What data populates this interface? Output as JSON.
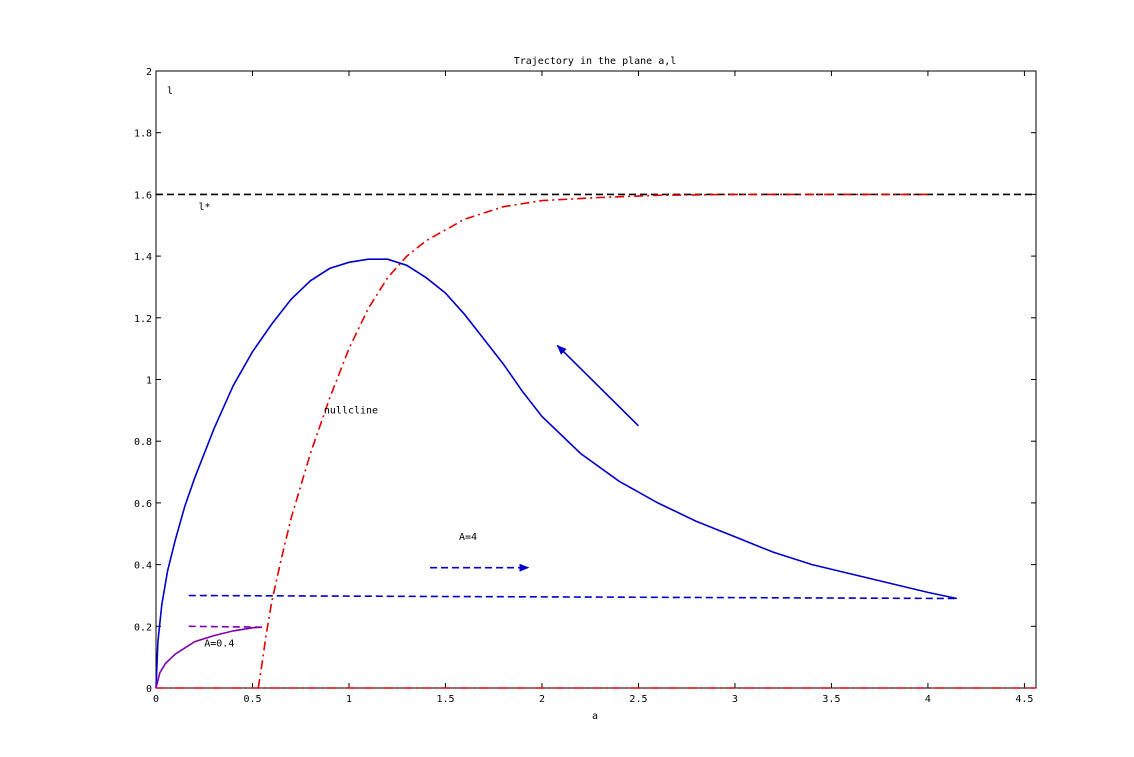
{
  "chart_data": {
    "type": "line",
    "title": "Trajectory in the plane a,l",
    "xlabel": "a",
    "ylabel": "l",
    "xlim": [
      0,
      4.56
    ],
    "ylim": [
      0,
      2
    ],
    "grid": false,
    "x_ticks": [
      "0",
      "0.5",
      "1",
      "1.5",
      "2",
      "2.5",
      "3",
      "3.5",
      "4",
      "4.5"
    ],
    "y_ticks": [
      "0",
      "0.2",
      "0.4",
      "0.6",
      "0.8",
      "1",
      "1.2",
      "1.4",
      "1.6",
      "1.8",
      "2"
    ],
    "annotations": [
      {
        "text": "l*",
        "x": 0.22,
        "y": 1.55
      },
      {
        "text": "nullcline",
        "x": 0.87,
        "y": 0.89
      },
      {
        "text": "A=4",
        "x": 1.57,
        "y": 0.48
      },
      {
        "text": "A=0.4",
        "x": 0.25,
        "y": 0.135
      }
    ],
    "series": [
      {
        "style": "dashed",
        "color": "#000000",
        "x": [
          0,
          4.56
        ],
        "y": [
          1.6,
          1.6
        ]
      },
      {
        "style": "dashdot",
        "color": "#e00000",
        "x": [
          0.53,
          0.55,
          0.57,
          0.6,
          0.65,
          0.7,
          0.8,
          0.9,
          1.0,
          1.1,
          1.2,
          1.3,
          1.4,
          1.6,
          1.8,
          2.0,
          2.3,
          2.6,
          3.0,
          3.5,
          4.0
        ],
        "y": [
          0.0,
          0.08,
          0.17,
          0.28,
          0.42,
          0.55,
          0.76,
          0.94,
          1.1,
          1.23,
          1.33,
          1.4,
          1.45,
          1.52,
          1.56,
          1.58,
          1.59,
          1.597,
          1.6,
          1.6,
          1.6
        ]
      },
      {
        "style": "dashdot",
        "color": "#e00000",
        "x": [
          0,
          4.56
        ],
        "y": [
          0,
          0
        ]
      },
      {
        "style": "solid",
        "color": "#0000cc",
        "x": [
          0,
          0.01,
          0.03,
          0.06,
          0.1,
          0.15,
          0.2,
          0.3,
          0.4,
          0.5,
          0.6,
          0.7,
          0.8,
          0.9,
          1.0,
          1.1,
          1.2,
          1.3,
          1.4,
          1.5,
          1.6,
          1.7,
          1.8,
          1.9,
          2.0,
          2.2,
          2.4,
          2.6,
          2.8,
          3.0,
          3.2,
          3.4,
          3.6,
          3.8,
          4.0,
          4.15
        ],
        "y": [
          0,
          0.15,
          0.27,
          0.38,
          0.48,
          0.59,
          0.68,
          0.84,
          0.98,
          1.09,
          1.18,
          1.26,
          1.32,
          1.36,
          1.38,
          1.39,
          1.39,
          1.37,
          1.33,
          1.28,
          1.21,
          1.13,
          1.05,
          0.96,
          0.88,
          0.76,
          0.67,
          0.6,
          0.54,
          0.49,
          0.44,
          0.4,
          0.37,
          0.34,
          0.31,
          0.29
        ]
      },
      {
        "style": "dashed",
        "color": "#0000cc",
        "x": [
          0.17,
          4.15
        ],
        "y": [
          0.3,
          0.29
        ]
      },
      {
        "style": "solid",
        "color": "#8000b0",
        "x": [
          0,
          0.02,
          0.05,
          0.1,
          0.15,
          0.2,
          0.3,
          0.4,
          0.5,
          0.55
        ],
        "y": [
          0,
          0.05,
          0.08,
          0.11,
          0.13,
          0.15,
          0.17,
          0.185,
          0.195,
          0.197
        ]
      },
      {
        "style": "dashed",
        "color": "#8000b0",
        "x": [
          0.17,
          0.55
        ],
        "y": [
          0.2,
          0.197
        ]
      }
    ],
    "arrows": [
      {
        "style": "solid",
        "color": "#0000cc",
        "x": [
          2.5,
          2.08
        ],
        "y": [
          0.85,
          1.11
        ]
      },
      {
        "style": "dashed",
        "color": "#0000cc",
        "x": [
          1.42,
          1.93
        ],
        "y": [
          0.39,
          0.39
        ]
      }
    ]
  }
}
